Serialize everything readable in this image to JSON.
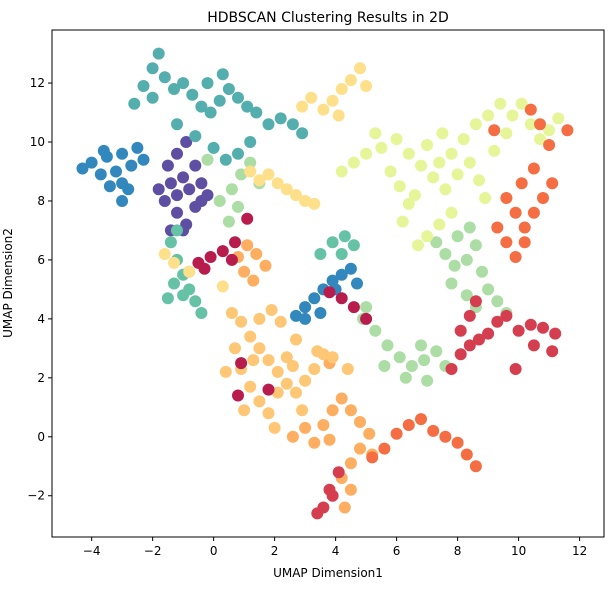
{
  "chart_data": {
    "type": "scatter",
    "title": "HDBSCAN Clustering Results in 2D",
    "xlabel": "UMAP Dimension1",
    "ylabel": "UMAP Dimension2",
    "xlim": [
      -5.3,
      12.8
    ],
    "ylim": [
      -3.4,
      13.8
    ],
    "x_ticks": [
      -4,
      -2,
      0,
      2,
      4,
      6,
      8,
      10,
      12
    ],
    "y_ticks": [
      -2,
      0,
      2,
      4,
      6,
      8,
      10,
      12
    ],
    "x_tick_labels": [
      "−4",
      "−2",
      "0",
      "2",
      "4",
      "6",
      "8",
      "10",
      "12"
    ],
    "y_tick_labels": [
      "−2",
      "0",
      "2",
      "4",
      "6",
      "8",
      "10",
      "12"
    ],
    "grid": false,
    "legend": "none",
    "colormap": "Spectral",
    "clusters": [
      {
        "color": "#5e4fa2",
        "points": [
          [
            -1.6,
            8.0
          ],
          [
            -1.4,
            8.6
          ],
          [
            -1.2,
            8.2
          ],
          [
            -1.0,
            8.8
          ],
          [
            -0.8,
            8.4
          ],
          [
            -0.6,
            9.2
          ],
          [
            -0.4,
            8.0
          ],
          [
            -1.2,
            7.6
          ],
          [
            -0.9,
            7.2
          ],
          [
            -0.6,
            7.8
          ],
          [
            -1.5,
            9.2
          ],
          [
            -1.2,
            9.6
          ],
          [
            -0.9,
            10.0
          ],
          [
            -1.4,
            7.0
          ],
          [
            -0.4,
            8.6
          ],
          [
            -0.2,
            8.2
          ],
          [
            -1.0,
            7.0
          ],
          [
            -1.8,
            8.4
          ]
        ]
      },
      {
        "color": "#3288bd",
        "points": [
          [
            -4.3,
            9.1
          ],
          [
            -4.0,
            9.3
          ],
          [
            -3.7,
            8.9
          ],
          [
            -3.5,
            9.5
          ],
          [
            -3.2,
            9.0
          ],
          [
            -3.0,
            9.6
          ],
          [
            -2.7,
            9.2
          ],
          [
            -2.5,
            9.8
          ],
          [
            -2.3,
            9.4
          ],
          [
            -3.0,
            8.6
          ],
          [
            -3.4,
            8.5
          ],
          [
            -3.0,
            8.0
          ],
          [
            -2.8,
            8.4
          ],
          [
            -3.6,
            9.7
          ],
          [
            2.7,
            4.1
          ],
          [
            3.0,
            4.4
          ],
          [
            3.3,
            4.7
          ],
          [
            3.6,
            5.0
          ],
          [
            3.9,
            5.3
          ],
          [
            4.2,
            5.5
          ],
          [
            4.5,
            5.7
          ],
          [
            4.7,
            5.2
          ],
          [
            4.0,
            5.0
          ],
          [
            3.5,
            4.2
          ],
          [
            3.0,
            4.0
          ]
        ]
      },
      {
        "color": "#66c2a5",
        "points": [
          [
            -1.4,
            6.6
          ],
          [
            -1.2,
            6.0
          ],
          [
            -1.0,
            5.5
          ],
          [
            -0.8,
            5.0
          ],
          [
            -0.6,
            4.6
          ],
          [
            -0.4,
            4.2
          ],
          [
            -1.3,
            5.2
          ],
          [
            -1.0,
            4.8
          ],
          [
            -1.2,
            7.0
          ],
          [
            -1.5,
            4.7
          ],
          [
            -0.8,
            5.6
          ],
          [
            3.5,
            6.2
          ],
          [
            3.9,
            6.6
          ],
          [
            4.3,
            6.8
          ],
          [
            4.6,
            6.5
          ],
          [
            4.2,
            6.2
          ]
        ]
      },
      {
        "color": "#54aead",
        "points": [
          [
            -2.3,
            11.9
          ],
          [
            -2.0,
            12.5
          ],
          [
            -1.8,
            13.0
          ],
          [
            -1.6,
            12.2
          ],
          [
            -1.3,
            11.8
          ],
          [
            -1.0,
            12.0
          ],
          [
            -0.7,
            11.6
          ],
          [
            -0.4,
            11.2
          ],
          [
            -0.1,
            11.0
          ],
          [
            0.2,
            11.4
          ],
          [
            0.5,
            11.8
          ],
          [
            0.8,
            11.5
          ],
          [
            1.1,
            11.2
          ],
          [
            1.4,
            11.0
          ],
          [
            1.8,
            10.6
          ],
          [
            2.2,
            10.8
          ],
          [
            2.6,
            10.6
          ],
          [
            2.9,
            10.3
          ],
          [
            -0.2,
            12.0
          ],
          [
            0.3,
            12.3
          ],
          [
            -2.0,
            11.5
          ],
          [
            -2.6,
            11.3
          ],
          [
            -1.2,
            10.6
          ],
          [
            -0.6,
            10.2
          ],
          [
            0.0,
            9.8
          ],
          [
            0.4,
            9.4
          ],
          [
            0.8,
            9.6
          ],
          [
            1.2,
            10.0
          ]
        ]
      },
      {
        "color": "#abdda4",
        "points": [
          [
            0.6,
            8.4
          ],
          [
            0.9,
            8.9
          ],
          [
            1.2,
            9.3
          ],
          [
            1.5,
            8.6
          ],
          [
            0.8,
            7.8
          ],
          [
            0.5,
            7.3
          ],
          [
            0.2,
            8.0
          ],
          [
            -0.2,
            9.4
          ],
          [
            7.3,
            6.6
          ],
          [
            7.6,
            6.2
          ],
          [
            7.9,
            5.8
          ],
          [
            8.3,
            6.0
          ],
          [
            8.6,
            6.5
          ],
          [
            8.8,
            5.6
          ],
          [
            9.0,
            5.0
          ],
          [
            8.6,
            4.4
          ],
          [
            8.3,
            4.8
          ],
          [
            9.3,
            4.6
          ],
          [
            9.6,
            4.2
          ],
          [
            8.0,
            6.8
          ],
          [
            7.8,
            5.2
          ],
          [
            8.4,
            7.1
          ],
          [
            4.9,
            4.0
          ],
          [
            5.3,
            3.6
          ],
          [
            5.7,
            3.1
          ],
          [
            6.1,
            2.7
          ],
          [
            6.5,
            2.4
          ],
          [
            6.9,
            2.6
          ],
          [
            7.3,
            2.9
          ],
          [
            7.6,
            2.4
          ],
          [
            6.8,
            3.1
          ],
          [
            5.6,
            2.4
          ],
          [
            6.3,
            2.0
          ],
          [
            7.0,
            1.9
          ],
          [
            5.0,
            4.4
          ]
        ]
      },
      {
        "color": "#e6f598",
        "points": [
          [
            4.2,
            9.0
          ],
          [
            4.6,
            9.3
          ],
          [
            5.0,
            9.6
          ],
          [
            5.5,
            9.8
          ],
          [
            6.0,
            10.1
          ],
          [
            6.4,
            9.6
          ],
          [
            6.8,
            9.2
          ],
          [
            7.2,
            8.8
          ],
          [
            7.6,
            8.4
          ],
          [
            8.0,
            8.9
          ],
          [
            8.4,
            9.3
          ],
          [
            8.7,
            8.7
          ],
          [
            8.9,
            8.1
          ],
          [
            7.8,
            7.6
          ],
          [
            7.4,
            7.2
          ],
          [
            7.0,
            6.8
          ],
          [
            6.7,
            6.5
          ],
          [
            6.4,
            7.9
          ],
          [
            6.1,
            8.5
          ],
          [
            6.6,
            8.2
          ],
          [
            7.0,
            9.9
          ],
          [
            7.5,
            10.3
          ],
          [
            7.8,
            9.6
          ],
          [
            8.2,
            10.1
          ],
          [
            8.6,
            10.6
          ],
          [
            9.0,
            10.9
          ],
          [
            9.4,
            11.3
          ],
          [
            9.8,
            10.9
          ],
          [
            10.1,
            11.3
          ],
          [
            10.4,
            10.6
          ],
          [
            10.7,
            10.1
          ],
          [
            11.0,
            10.4
          ],
          [
            11.3,
            10.8
          ],
          [
            9.6,
            10.3
          ],
          [
            9.2,
            9.7
          ],
          [
            5.3,
            10.3
          ],
          [
            5.8,
            9.0
          ],
          [
            6.2,
            7.3
          ],
          [
            7.4,
            9.3
          ]
        ]
      },
      {
        "color": "#fee08b",
        "points": [
          [
            3.2,
            11.5
          ],
          [
            3.6,
            11.1
          ],
          [
            3.9,
            11.4
          ],
          [
            4.2,
            11.8
          ],
          [
            4.5,
            12.1
          ],
          [
            4.8,
            12.5
          ],
          [
            5.0,
            11.9
          ],
          [
            2.9,
            11.2
          ],
          [
            4.1,
            10.9
          ],
          [
            1.2,
            9.0
          ],
          [
            1.5,
            8.7
          ],
          [
            1.8,
            8.9
          ],
          [
            2.1,
            8.6
          ],
          [
            2.4,
            8.4
          ],
          [
            2.7,
            8.2
          ],
          [
            3.0,
            8.0
          ],
          [
            3.3,
            7.9
          ],
          [
            -1.6,
            6.2
          ],
          [
            -1.3,
            5.9
          ],
          [
            -0.8,
            5.6
          ],
          [
            0.3,
            5.1
          ]
        ]
      },
      {
        "color": "#fdae61",
        "points": [
          [
            0.8,
            6.1
          ],
          [
            1.1,
            6.5
          ],
          [
            1.4,
            6.2
          ],
          [
            1.7,
            5.8
          ],
          [
            1.0,
            5.6
          ],
          [
            1.3,
            5.3
          ],
          [
            3.8,
            2.5
          ],
          [
            3.6,
            0.4
          ],
          [
            3.9,
            0.9
          ],
          [
            4.2,
            1.3
          ],
          [
            4.5,
            0.9
          ],
          [
            4.8,
            0.5
          ],
          [
            5.1,
            0.1
          ],
          [
            4.8,
            -0.4
          ],
          [
            4.5,
            -0.9
          ],
          [
            4.2,
            -1.4
          ],
          [
            4.5,
            -1.8
          ],
          [
            4.3,
            -2.4
          ],
          [
            3.8,
            -0.1
          ],
          [
            3.3,
            -0.2
          ],
          [
            3.0,
            0.3
          ],
          [
            2.6,
            0.0
          ],
          [
            5.2,
            -0.6
          ]
        ]
      },
      {
        "color": "#fdc776",
        "points": [
          [
            0.6,
            4.2
          ],
          [
            0.9,
            3.9
          ],
          [
            1.2,
            3.4
          ],
          [
            1.5,
            3.0
          ],
          [
            1.8,
            2.6
          ],
          [
            2.1,
            2.2
          ],
          [
            2.4,
            1.8
          ],
          [
            2.7,
            1.5
          ],
          [
            3.0,
            1.9
          ],
          [
            3.3,
            2.3
          ],
          [
            3.6,
            2.8
          ],
          [
            0.9,
            2.3
          ],
          [
            1.2,
            1.7
          ],
          [
            1.5,
            1.2
          ],
          [
            1.8,
            0.8
          ],
          [
            2.1,
            1.5
          ],
          [
            2.4,
            2.7
          ],
          [
            2.7,
            3.3
          ],
          [
            2.2,
            3.9
          ],
          [
            1.9,
            4.3
          ],
          [
            1.5,
            4.0
          ],
          [
            0.7,
            3.0
          ],
          [
            0.4,
            2.2
          ],
          [
            1.0,
            0.9
          ],
          [
            2.0,
            0.3
          ],
          [
            2.9,
            0.9
          ],
          [
            3.4,
            2.9
          ],
          [
            3.9,
            2.7
          ],
          [
            4.4,
            2.3
          ],
          [
            1.3,
            2.6
          ],
          [
            2.6,
            2.4
          ]
        ]
      },
      {
        "color": "#f46d43",
        "points": [
          [
            9.6,
            8.1
          ],
          [
            9.9,
            7.6
          ],
          [
            10.2,
            7.1
          ],
          [
            10.5,
            7.6
          ],
          [
            10.2,
            6.6
          ],
          [
            9.9,
            6.1
          ],
          [
            9.6,
            6.6
          ],
          [
            9.3,
            7.1
          ],
          [
            10.8,
            8.1
          ],
          [
            11.1,
            8.6
          ],
          [
            10.5,
            9.1
          ],
          [
            10.1,
            8.6
          ],
          [
            10.4,
            11.1
          ],
          [
            10.7,
            10.6
          ],
          [
            11.0,
            9.9
          ],
          [
            9.2,
            10.4
          ],
          [
            6.0,
            0.1
          ],
          [
            6.4,
            0.4
          ],
          [
            6.8,
            0.6
          ],
          [
            7.2,
            0.2
          ],
          [
            7.6,
            0.0
          ],
          [
            8.0,
            -0.2
          ],
          [
            8.3,
            -0.6
          ],
          [
            8.6,
            -1.0
          ],
          [
            5.6,
            -0.4
          ],
          [
            5.2,
            -0.7
          ],
          [
            11.6,
            10.4
          ]
        ]
      },
      {
        "color": "#d53e4f",
        "points": [
          [
            7.8,
            2.3
          ],
          [
            8.1,
            2.8
          ],
          [
            8.4,
            3.1
          ],
          [
            8.7,
            3.3
          ],
          [
            9.0,
            3.5
          ],
          [
            9.3,
            3.9
          ],
          [
            9.6,
            4.1
          ],
          [
            8.6,
            4.6
          ],
          [
            8.4,
            4.1
          ],
          [
            8.1,
            3.6
          ],
          [
            10.0,
            3.6
          ],
          [
            10.4,
            3.8
          ],
          [
            10.8,
            3.7
          ],
          [
            11.2,
            3.5
          ],
          [
            11.1,
            2.9
          ],
          [
            10.5,
            3.1
          ],
          [
            9.9,
            2.3
          ],
          [
            4.1,
            -1.2
          ],
          [
            3.8,
            -1.8
          ],
          [
            3.6,
            -2.4
          ],
          [
            3.4,
            -2.6
          ],
          [
            3.9,
            -2.0
          ]
        ]
      },
      {
        "color": "#b71c4d",
        "points": [
          [
            -0.5,
            5.9
          ],
          [
            -0.1,
            6.1
          ],
          [
            0.3,
            6.3
          ],
          [
            0.7,
            6.6
          ],
          [
            1.1,
            7.4
          ],
          [
            3.8,
            4.9
          ],
          [
            4.2,
            4.7
          ],
          [
            4.6,
            4.4
          ],
          [
            5.0,
            4.0
          ],
          [
            0.8,
            1.4
          ],
          [
            0.9,
            2.5
          ],
          [
            1.8,
            1.6
          ],
          [
            0.6,
            6.0
          ],
          [
            -0.3,
            5.7
          ]
        ]
      }
    ]
  }
}
